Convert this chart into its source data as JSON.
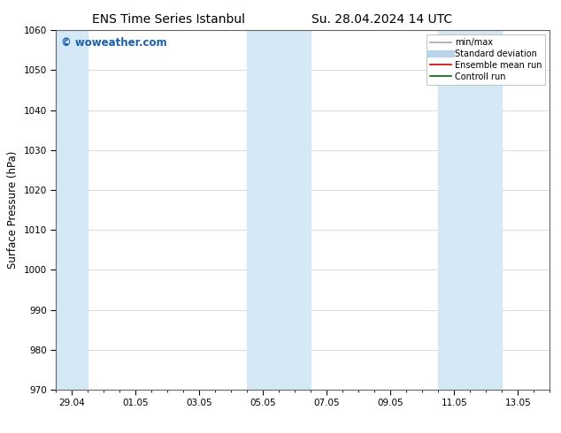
{
  "title_left": "ENS Time Series Istanbul",
  "title_right": "Su. 28.04.2024 14 UTC",
  "ylabel": "Surface Pressure (hPa)",
  "ylim": [
    970,
    1060
  ],
  "yticks": [
    970,
    980,
    990,
    1000,
    1010,
    1020,
    1030,
    1040,
    1050,
    1060
  ],
  "xtick_labels": [
    "29.04",
    "01.05",
    "03.05",
    "05.05",
    "07.05",
    "09.05",
    "11.05",
    "13.05"
  ],
  "xtick_positions": [
    0,
    2,
    4,
    6,
    8,
    10,
    12,
    14
  ],
  "xlim": [
    -0.5,
    15.0
  ],
  "shaded_regions": [
    {
      "xstart": -0.5,
      "xend": 0.5,
      "color": "#d5e8f5"
    },
    {
      "xstart": 5.5,
      "xend": 7.5,
      "color": "#d5e8f5"
    },
    {
      "xstart": 11.5,
      "xend": 13.5,
      "color": "#d5e8f5"
    }
  ],
  "watermark": "© woweather.com",
  "watermark_color": "#1a5fad",
  "legend_items": [
    {
      "label": "min/max",
      "color": "#aaaaaa",
      "lw": 1.2
    },
    {
      "label": "Standard deviation",
      "color": "#b8d4e8",
      "lw": 6
    },
    {
      "label": "Ensemble mean run",
      "color": "#cc0000",
      "lw": 1.2
    },
    {
      "label": "Controll run",
      "color": "#006600",
      "lw": 1.2
    }
  ],
  "bg_color": "#ffffff",
  "plot_bg_color": "#ffffff",
  "title_fontsize": 10,
  "tick_fontsize": 7.5,
  "ylabel_fontsize": 8.5,
  "watermark_fontsize": 8.5,
  "legend_fontsize": 7
}
